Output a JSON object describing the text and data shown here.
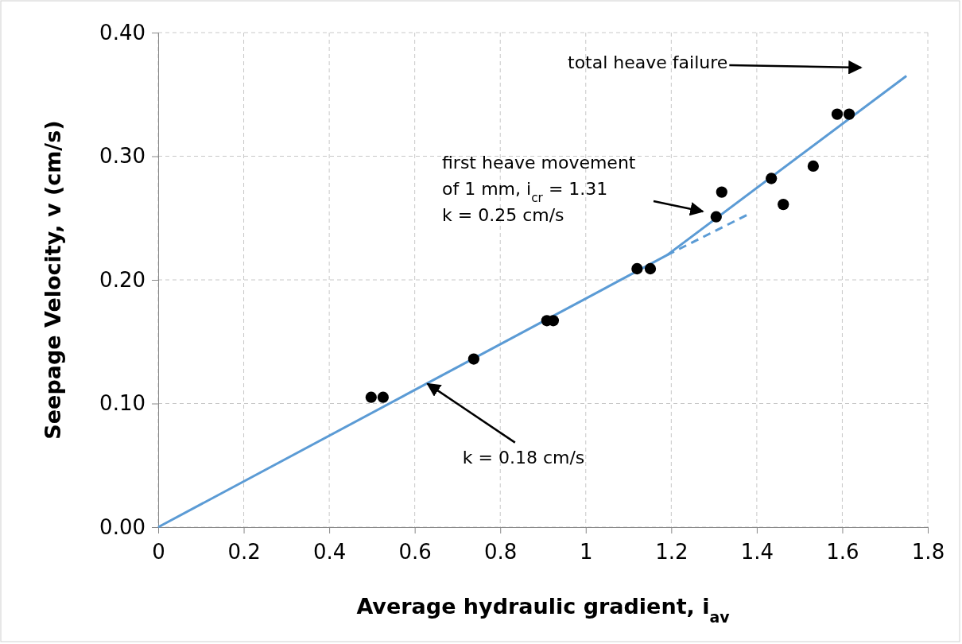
{
  "chart_data": {
    "type": "scatter",
    "xlabel": "Average hydraulic gradient, i$_{av}$",
    "ylabel": "Seepage Velocity, v  (cm/s)",
    "xlim": [
      0,
      1.8
    ],
    "ylim": [
      0,
      0.4
    ],
    "xticks": [
      0,
      0.2,
      0.4,
      0.6,
      0.8,
      1,
      1.2,
      1.4,
      1.6,
      1.8
    ],
    "yticks": [
      {
        "value": 0,
        "label": "0.00"
      },
      {
        "value": 0.1,
        "label": "0.10"
      },
      {
        "value": 0.2,
        "label": "0.20"
      },
      {
        "value": 0.3,
        "label": "0.30"
      },
      {
        "value": 0.4,
        "label": "0.40"
      }
    ],
    "grid": true,
    "marker": "circle",
    "series": [
      {
        "color": "#000000",
        "x": [
          0.498,
          0.526,
          0.738,
          0.909,
          0.924,
          1.12,
          1.151,
          1.305,
          1.318,
          1.434,
          1.462,
          1.532,
          1.588,
          1.616
        ],
        "values": [
          0.105,
          0.105,
          0.136,
          0.167,
          0.167,
          0.209,
          0.209,
          0.251,
          0.271,
          0.282,
          0.261,
          0.292,
          0.334,
          0.334
        ]
      },
      {
        "type": "line",
        "color": "#5b9bd5",
        "marker": "none",
        "line_style": "solid",
        "x": [
          0,
          1.19,
          1.75
        ],
        "values": [
          0,
          0.22,
          0.365
        ]
      },
      {
        "type": "line",
        "color": "#5b9bd5",
        "marker": "none",
        "line_style": "dashed",
        "x": [
          1.19,
          1.38
        ],
        "values": [
          0.22,
          0.253
        ]
      }
    ],
    "annotations": [
      "total heave failure",
      "first heave movement\nof 1 mm, i$_{cr}$ = 1.31\nk = 0.25 cm/s",
      {
        "text": "k = 0.18 cm/s",
        "x": 0.63,
        "y": 0.116
      }
    ]
  }
}
